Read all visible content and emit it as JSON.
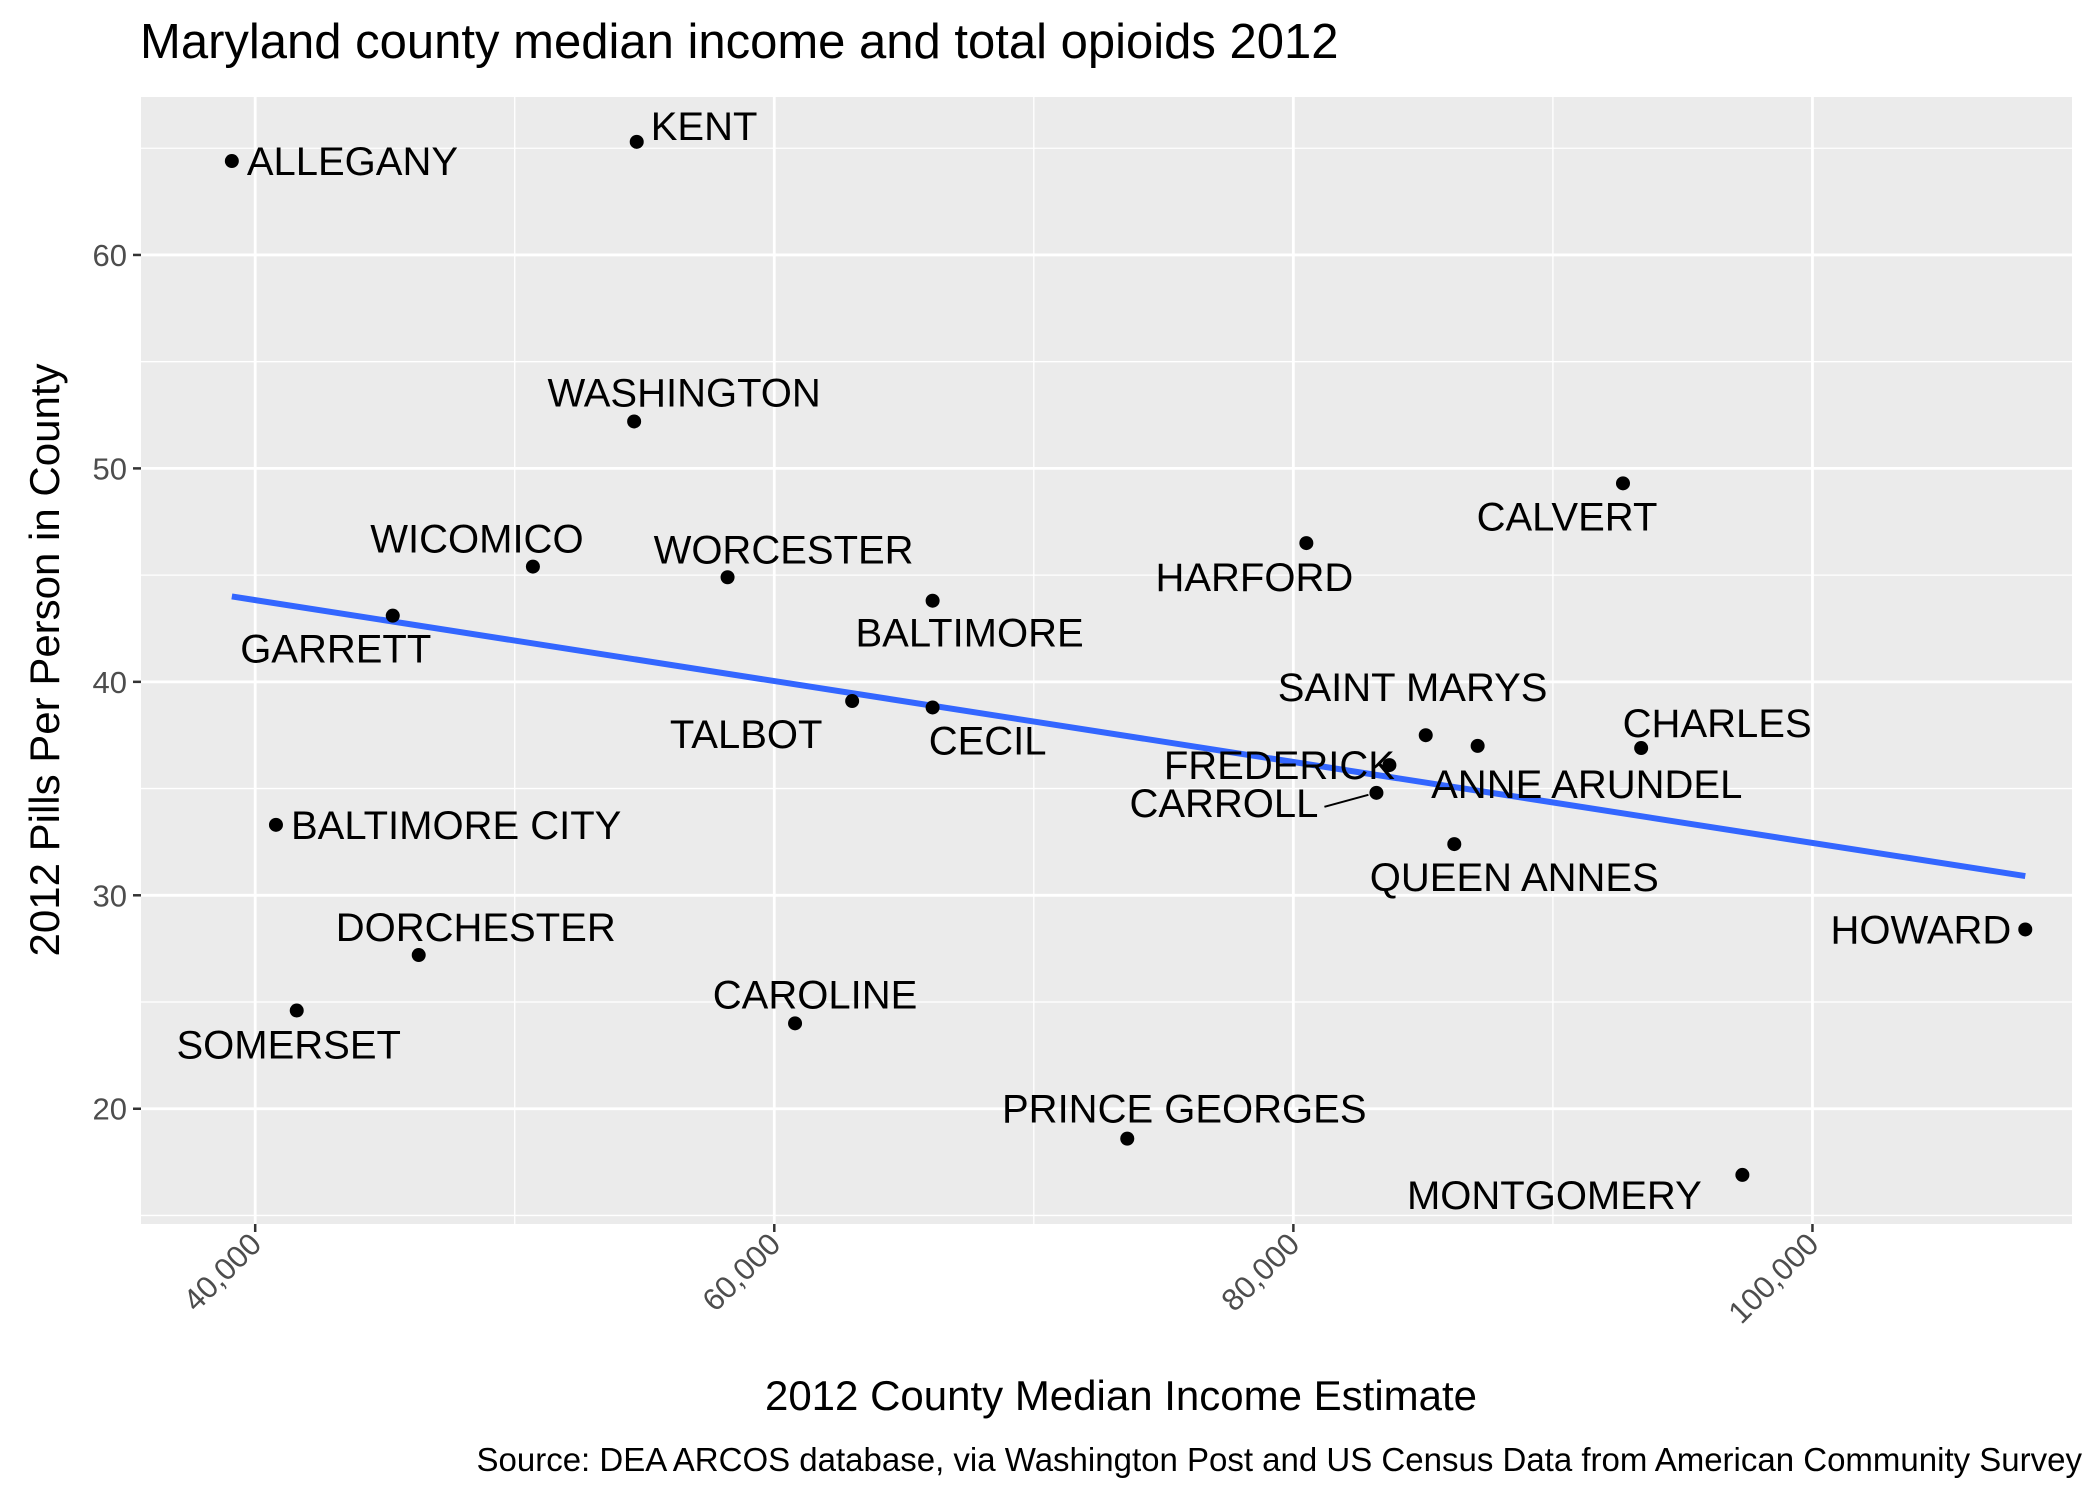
{
  "chart_data": {
    "type": "scatter",
    "title": "Maryland county median income and total opioids 2012",
    "xlabel": "2012 County Median Income Estimate",
    "ylabel": "2012 Pills Per Person in County",
    "caption": "Source: DEA ARCOS database, via Washington Post and US Census Data from American Community Survey",
    "xlim": [
      35600,
      110000
    ],
    "ylim": [
      14.6,
      67.4
    ],
    "x_ticks": [
      40000,
      60000,
      80000,
      100000
    ],
    "x_tick_labels": [
      "40,000",
      "60,000",
      "80,000",
      "100,000"
    ],
    "y_ticks": [
      20,
      30,
      40,
      50,
      60
    ],
    "y_tick_labels": [
      "20",
      "30",
      "40",
      "50",
      "60"
    ],
    "grid": true,
    "points": [
      {
        "label": "ALLEGANY",
        "x": 39100,
        "y": 64.4
      },
      {
        "label": "KENT",
        "x": 54700,
        "y": 65.3
      },
      {
        "label": "WASHINGTON",
        "x": 54600,
        "y": 52.2
      },
      {
        "label": "WICOMICO",
        "x": 50700,
        "y": 45.4
      },
      {
        "label": "WORCESTER",
        "x": 58200,
        "y": 44.9
      },
      {
        "label": "GARRETT",
        "x": 45300,
        "y": 43.1
      },
      {
        "label": "BALTIMORE",
        "x": 66100,
        "y": 43.8
      },
      {
        "label": "HARFORD",
        "x": 80500,
        "y": 46.5
      },
      {
        "label": "CALVERT",
        "x": 92700,
        "y": 49.3
      },
      {
        "label": "TALBOT",
        "x": 63000,
        "y": 39.1
      },
      {
        "label": "CECIL",
        "x": 66100,
        "y": 38.8
      },
      {
        "label": "SAINT MARYS",
        "x": 87100,
        "y": 37.0
      },
      {
        "label": "CHARLES",
        "x": 93400,
        "y": 36.9
      },
      {
        "label": "FREDERICK",
        "x": 83700,
        "y": 36.1
      },
      {
        "label": "ANNE ARUNDEL",
        "x": 85100,
        "y": 37.5
      },
      {
        "label": "CARROLL",
        "x": 83200,
        "y": 34.8
      },
      {
        "label": "QUEEN ANNES",
        "x": 86200,
        "y": 32.4
      },
      {
        "label": "BALTIMORE CITY",
        "x": 40800,
        "y": 33.3
      },
      {
        "label": "HOWARD",
        "x": 108200,
        "y": 28.4
      },
      {
        "label": "DORCHESTER",
        "x": 46300,
        "y": 27.2
      },
      {
        "label": "SOMERSET",
        "x": 41600,
        "y": 24.6
      },
      {
        "label": "CAROLINE",
        "x": 60800,
        "y": 24.0
      },
      {
        "label": "PRINCE GEORGES",
        "x": 73600,
        "y": 18.6
      },
      {
        "label": "MONTGOMERY",
        "x": 97300,
        "y": 16.9
      }
    ],
    "trend_line": {
      "method": "linear",
      "x": [
        39100,
        108200
      ],
      "y": [
        44.0,
        30.9
      ],
      "color": "#3366FF"
    },
    "point_color": "#000000",
    "panel_background": "#EBEBEB",
    "gridline_color": "#FFFFFF"
  }
}
